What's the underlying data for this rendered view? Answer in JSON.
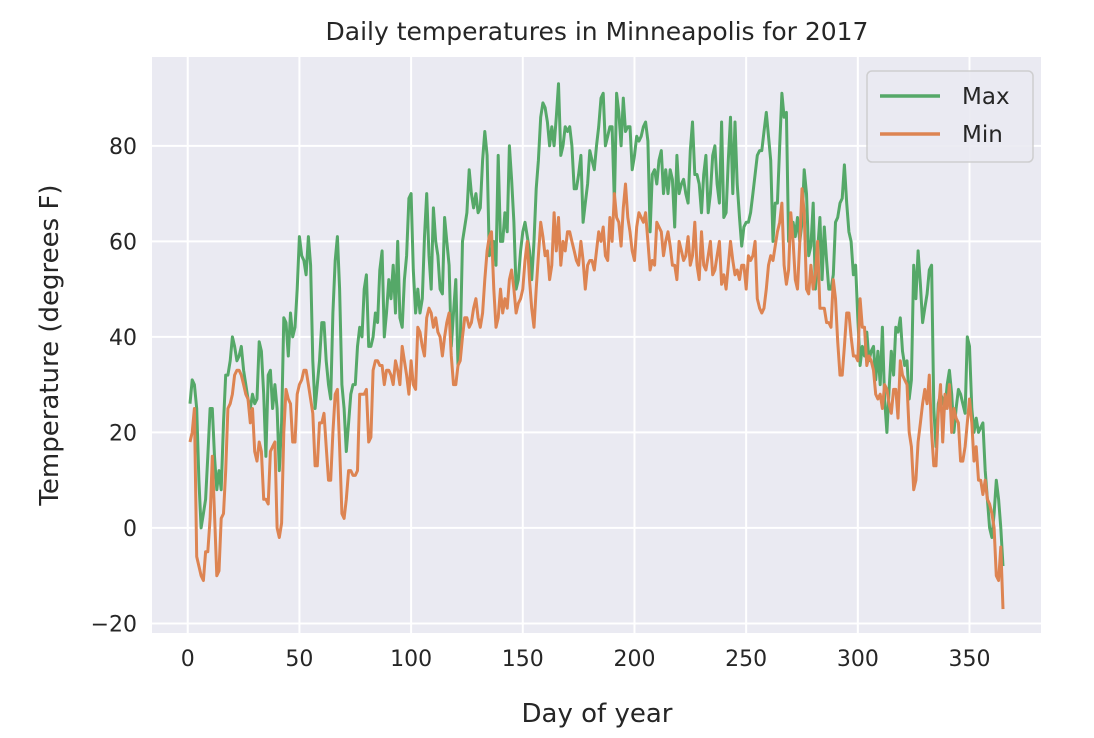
{
  "chart_data": {
    "type": "line",
    "title": "Daily temperatures in Minneapolis for 2017",
    "xlabel": "Day of year",
    "ylabel": "Temperature (degrees F)",
    "xlim": [
      -16,
      382
    ],
    "ylim": [
      -22,
      98.6
    ],
    "xticks": [
      0,
      50,
      100,
      150,
      200,
      250,
      300,
      350
    ],
    "yticks": [
      -20,
      0,
      20,
      40,
      60,
      80
    ],
    "xtick_labels": [
      "0",
      "50",
      "100",
      "150",
      "200",
      "250",
      "300",
      "350"
    ],
    "ytick_labels": [
      "−20",
      "0",
      "20",
      "40",
      "60",
      "80"
    ],
    "grid": true,
    "background": "#eaeaf2",
    "legend_position": "top-right",
    "x_start": 1,
    "series": [
      {
        "name": "Max",
        "color": "#55a868",
        "values": [
          26,
          31,
          30,
          25,
          10,
          0,
          3,
          6,
          15,
          25,
          25,
          15,
          8,
          12,
          8,
          22,
          32,
          32,
          35,
          40,
          38,
          35,
          36,
          38,
          33,
          30,
          27,
          25,
          28,
          26,
          27,
          39,
          37,
          28,
          15,
          32,
          33,
          25,
          30,
          25,
          12,
          22,
          44,
          43,
          36,
          45,
          40,
          42,
          50,
          61,
          57,
          56,
          53,
          61,
          55,
          35,
          25,
          30,
          35,
          43,
          43,
          35,
          30,
          27,
          45,
          56,
          61,
          50,
          30,
          25,
          16,
          22,
          28,
          30,
          30,
          38,
          42,
          40,
          50,
          53,
          38,
          38,
          40,
          45,
          43,
          54,
          58,
          40,
          45,
          52,
          48,
          55,
          45,
          60,
          44,
          42,
          52,
          57,
          69,
          70,
          54,
          45,
          50,
          45,
          48,
          61,
          70,
          57,
          50,
          67,
          60,
          57,
          50,
          49,
          65,
          60,
          55,
          38,
          45,
          52,
          34,
          38,
          60,
          63,
          66,
          75,
          70,
          67,
          70,
          66,
          67,
          77,
          83,
          78,
          57,
          58,
          60,
          55,
          78,
          60,
          60,
          66,
          62,
          80,
          73,
          64,
          50,
          52,
          58,
          62,
          64,
          61,
          58,
          52,
          60,
          71,
          77,
          86,
          89,
          88,
          85,
          80,
          84,
          80,
          86,
          93,
          78,
          80,
          84,
          83,
          84,
          80,
          71,
          71,
          74,
          78,
          64,
          68,
          72,
          79,
          77,
          75,
          80,
          84,
          90,
          91,
          80,
          82,
          84,
          84,
          68,
          91,
          87,
          80,
          90,
          83,
          84,
          84,
          75,
          78,
          82,
          81,
          82,
          84,
          85,
          81,
          62,
          74,
          75,
          72,
          77,
          79,
          70,
          75,
          70,
          75,
          73,
          63,
          78,
          70,
          72,
          73,
          70,
          68,
          79,
          85,
          74,
          74,
          72,
          66,
          74,
          78,
          66,
          70,
          78,
          80,
          72,
          68,
          85,
          65,
          66,
          77,
          86,
          70,
          85,
          72,
          65,
          59,
          63,
          64,
          64,
          66,
          70,
          74,
          78,
          79,
          79,
          83,
          87,
          82,
          77,
          60,
          68,
          68,
          80,
          91,
          86,
          87,
          60,
          62,
          64,
          61,
          65,
          60,
          64,
          75,
          70,
          57,
          59,
          68,
          50,
          58,
          65,
          52,
          63,
          56,
          50,
          50,
          53,
          64,
          65,
          68,
          69,
          76,
          68,
          62,
          60,
          53,
          55,
          44,
          34,
          38,
          36,
          41,
          35,
          37,
          38,
          31,
          37,
          30,
          42,
          27,
          20,
          29,
          37,
          32,
          42,
          41,
          44,
          37,
          34,
          35,
          27,
          31,
          55,
          48,
          58,
          51,
          43,
          46,
          49,
          54,
          55,
          25,
          17,
          26,
          28,
          27,
          25,
          30,
          33,
          28,
          20,
          25,
          29,
          28,
          26,
          24,
          40,
          38,
          25,
          20,
          23,
          20,
          21,
          22,
          12,
          6,
          0,
          -2,
          3,
          10,
          6,
          0,
          -8
        ]
      },
      {
        "name": "Min",
        "color": "#dd8452",
        "values": [
          18,
          20,
          25,
          -6,
          -8,
          -10,
          -11,
          -5,
          -5,
          2,
          15,
          3,
          -10,
          -9,
          2,
          3,
          12,
          25,
          26,
          28,
          32,
          33,
          33,
          32,
          30,
          28,
          27,
          22,
          25,
          16,
          14,
          18,
          16,
          6,
          6,
          5,
          16,
          17,
          18,
          0,
          -2,
          1,
          20,
          29,
          27,
          26,
          18,
          18,
          28,
          30,
          31,
          33,
          33,
          30,
          27,
          24,
          13,
          13,
          22,
          22,
          24,
          17,
          10,
          10,
          20,
          28,
          29,
          17,
          3,
          2,
          6,
          12,
          12,
          11,
          11,
          12,
          28,
          28,
          28,
          29,
          18,
          19,
          33,
          35,
          35,
          34,
          34,
          30,
          33,
          33,
          32,
          30,
          35,
          33,
          30,
          38,
          35,
          32,
          28,
          35,
          30,
          29,
          42,
          41,
          38,
          36,
          44,
          46,
          45,
          42,
          44,
          41,
          40,
          36,
          40,
          43,
          45,
          36,
          30,
          30,
          34,
          35,
          40,
          44,
          44,
          42,
          43,
          46,
          48,
          44,
          42,
          45,
          52,
          58,
          61,
          62,
          50,
          42,
          44,
          50,
          45,
          48,
          46,
          52,
          54,
          50,
          45,
          47,
          48,
          50,
          56,
          60,
          52,
          46,
          42,
          50,
          57,
          64,
          61,
          57,
          58,
          52,
          55,
          66,
          58,
          65,
          55,
          60,
          58,
          62,
          62,
          60,
          58,
          56,
          55,
          60,
          56,
          50,
          55,
          56,
          56,
          54,
          58,
          62,
          60,
          63,
          57,
          56,
          65,
          60,
          70,
          65,
          64,
          59,
          67,
          72,
          65,
          62,
          58,
          56,
          63,
          66,
          65,
          64,
          66,
          60,
          54,
          56,
          55,
          64,
          63,
          62,
          57,
          60,
          62,
          59,
          55,
          55,
          52,
          60,
          58,
          56,
          57,
          61,
          55,
          57,
          64,
          55,
          52,
          62,
          55,
          54,
          57,
          60,
          53,
          54,
          57,
          60,
          51,
          53,
          50,
          55,
          60,
          56,
          53,
          54,
          52,
          55,
          55,
          50,
          57,
          56,
          57,
          60,
          48,
          46,
          45,
          46,
          50,
          55,
          57,
          56,
          59,
          62,
          64,
          68,
          55,
          51,
          54,
          66,
          60,
          52,
          50,
          60,
          71,
          66,
          50,
          49,
          55,
          50,
          53,
          60,
          46,
          46,
          46,
          43,
          43,
          42,
          52,
          48,
          39,
          32,
          32,
          38,
          45,
          45,
          40,
          36,
          36,
          35,
          48,
          42,
          42,
          34,
          36,
          35,
          33,
          28,
          27,
          28,
          25,
          30,
          29,
          26,
          24,
          29,
          29,
          23,
          35,
          32,
          31,
          30,
          20,
          17,
          8,
          10,
          18,
          22,
          26,
          29,
          26,
          32,
          20,
          13,
          13,
          24,
          30,
          18,
          28,
          25,
          30,
          20,
          25,
          23,
          22,
          14,
          14,
          17,
          22,
          27,
          22,
          14,
          17,
          10,
          10,
          7,
          10,
          6,
          5,
          3,
          0,
          -10,
          -11,
          -4,
          -17
        ]
      }
    ]
  }
}
